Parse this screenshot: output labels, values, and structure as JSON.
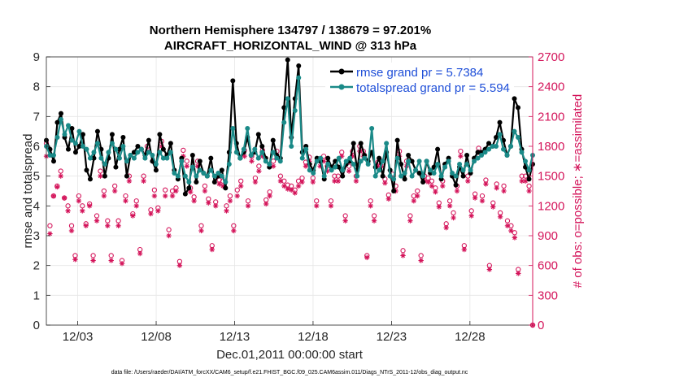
{
  "chart_data": {
    "type": "line",
    "title_line1": "Northern Hemisphere 134797 / 138679 = 97.201%",
    "title_line2": "AIRCRAFT_HORIZONTAL_WIND @ 313 hPa",
    "xlabel": "Dec.01,2011 00:00:00 start",
    "ylabel_left": "rmse and totalspread",
    "ylabel_right": "# of obs: o=possible; ∗=assimilated",
    "footer": "data file: /Users/raeder/DAI/ATM_forcXX/CAM6_setup/f.e21.FHIST_BGC.f09_025.CAM6assim.011/Diags_NTrS_2011-12/obs_diag_output.nc",
    "x_range": [
      0,
      31
    ],
    "ylim_left": [
      0,
      9
    ],
    "ylim_right": [
      0,
      2700
    ],
    "yticks_left": [
      "0",
      "1",
      "2",
      "3",
      "4",
      "5",
      "6",
      "7",
      "8",
      "9"
    ],
    "yticks_right": [
      "0",
      "300",
      "600",
      "900",
      "1200",
      "1500",
      "1800",
      "2100",
      "2400",
      "2700"
    ],
    "xticks": [
      {
        "value": 2,
        "label": "12/03"
      },
      {
        "value": 7,
        "label": "12/08"
      },
      {
        "value": 12,
        "label": "12/13"
      },
      {
        "value": 17,
        "label": "12/18"
      },
      {
        "value": 22,
        "label": "12/23"
      },
      {
        "value": 27,
        "label": "12/28"
      }
    ],
    "colors": {
      "rmse": "#000000",
      "spread": "#1a8a88",
      "obs": "#d4145a",
      "legend_text": "#1f4fd8"
    },
    "series": [
      {
        "name": "rmse grand pr = 5.7384",
        "color": "#000000",
        "values": [
          6.2,
          5.9,
          5.5,
          6.8,
          7.1,
          6.3,
          5.9,
          6.6,
          5.8,
          6.0,
          6.4,
          5.2,
          4.9,
          5.6,
          6.5,
          5.9,
          5.0,
          5.6,
          6.4,
          5.3,
          5.9,
          6.3,
          5.0,
          5.7,
          5.8,
          6.0,
          5.9,
          5.7,
          6.2,
          5.5,
          5.2,
          6.4,
          5.9,
          5.7,
          6.1,
          5.2,
          4.9,
          5.6,
          4.4,
          4.6,
          5.7,
          4.8,
          5.5,
          5.1,
          5.0,
          5.6,
          4.8,
          5.0,
          5.2,
          4.6,
          5.8,
          8.2,
          6.1,
          5.6,
          5.8,
          6.3,
          5.7,
          5.8,
          6.4,
          6.0,
          5.6,
          5.3,
          6.2,
          5.7,
          5.6,
          7.3,
          8.9,
          6.3,
          7.6,
          8.7,
          5.8,
          6.0,
          5.4,
          5.2,
          5.6,
          5.5,
          4.9,
          5.6,
          5.3,
          5.5,
          5.3,
          5.0,
          5.4,
          5.5,
          6.1,
          5.2,
          6.1,
          5.7,
          5.5,
          5.8,
          5.3,
          5.6,
          5.0,
          5.8,
          5.2,
          4.5,
          6.2,
          5.4,
          4.9,
          5.7,
          5.5,
          5.2,
          5.1,
          4.8,
          5.5,
          5.1,
          5.3,
          5.9,
          4.9,
          5.4,
          5.6,
          5.0,
          4.7,
          5.3,
          5.0,
          5.7,
          5.1,
          5.6,
          5.8,
          5.8,
          5.9,
          6.1,
          6.0,
          6.3,
          6.8,
          6.2,
          5.7,
          6.0,
          7.6,
          7.3,
          5.9,
          5.3,
          4.9,
          5.4
        ]
      },
      {
        "name": "totalspread grand pr = 5.594",
        "color": "#1a8a88",
        "values": [
          6.0,
          5.7,
          5.7,
          6.3,
          6.9,
          6.4,
          6.7,
          6.2,
          6.1,
          6.5,
          6.0,
          5.9,
          5.6,
          5.8,
          6.1,
          5.6,
          5.4,
          5.8,
          6.1,
          5.9,
          5.6,
          6.0,
          5.5,
          5.7,
          5.6,
          5.8,
          5.9,
          5.6,
          5.8,
          5.7,
          5.4,
          5.8,
          5.6,
          5.6,
          5.8,
          5.1,
          5.0,
          5.5,
          5.0,
          4.8,
          5.3,
          5.0,
          5.2,
          5.1,
          5.0,
          5.2,
          5.0,
          5.1,
          5.0,
          4.8,
          5.4,
          6.6,
          5.8,
          5.6,
          5.9,
          6.6,
          5.7,
          5.9,
          5.6,
          5.8,
          5.5,
          5.4,
          5.8,
          5.6,
          5.5,
          6.8,
          7.6,
          6.0,
          7.2,
          8.3,
          5.6,
          5.9,
          5.2,
          5.1,
          5.5,
          5.6,
          5.0,
          5.4,
          5.2,
          5.3,
          5.6,
          5.2,
          5.5,
          5.6,
          5.4,
          5.0,
          5.5,
          5.6,
          5.4,
          6.6,
          5.0,
          5.2,
          5.5,
          6.1,
          5.0,
          4.9,
          5.6,
          5.0,
          5.1,
          5.5,
          5.0,
          5.2,
          5.5,
          5.0,
          5.5,
          5.2,
          5.1,
          5.4,
          5.0,
          5.3,
          5.5,
          5.1,
          5.0,
          5.4,
          5.2,
          5.4,
          5.2,
          5.5,
          5.6,
          5.7,
          5.8,
          5.9,
          6.0,
          6.0,
          6.4,
          5.9,
          5.7,
          6.0,
          6.5,
          6.3,
          5.8,
          5.5,
          5.2,
          5.7
        ]
      }
    ],
    "possible_obs": [
      1830,
      1000,
      1300,
      1400,
      1550,
      1280,
      1200,
      1000,
      700,
      1300,
      1200,
      1020,
      1220,
      700,
      1100,
      1550,
      1350,
      1050,
      700,
      1400,
      1050,
      650,
      1300,
      1500,
      1120,
      1250,
      760,
      1500,
      1800,
      1160,
      1360,
      1180,
      1850,
      1360,
      960,
      1350,
      1380,
      640,
      1760,
      1650,
      1380,
      1290,
      1650,
      1000,
      1400,
      1270,
      800,
      1240,
      1460,
      1450,
      1200,
      1300,
      1000,
      1360,
      1450,
      1760,
      1250,
      1700,
      1480,
      1600,
      1760,
      1260,
      1340,
      1650,
      1750,
      1500,
      1450,
      1410,
      1400,
      1360,
      1450,
      1480,
      1640,
      1690,
      1480,
      1250,
      1650,
      1700,
      1600,
      1250,
      1500,
      1500,
      1740,
      1100,
      1600,
      1750,
      1500,
      1800,
      1750,
      700,
      1250,
      1100,
      1640,
      1650,
      1470,
      1310,
      1520,
      1400,
      1750,
      750,
      1650,
      1100,
      1300,
      1350,
      700,
      1500,
      1480,
      1450,
      1380,
      1230,
      1450,
      1020,
      1250,
      1130,
      1400,
      1750,
      800,
      1500,
      1150,
      1320,
      1780,
      1300,
      1460,
      600,
      1230,
      1420,
      1130,
      1400,
      1050,
      1000,
      930,
      560,
      1500,
      1500,
      1400,
      0
    ],
    "assimilated_obs": [
      1700,
      920,
      1300,
      1390,
      1500,
      1280,
      1150,
      950,
      660,
      1250,
      1150,
      1000,
      1200,
      650,
      1050,
      1500,
      1300,
      1000,
      650,
      1350,
      1000,
      620,
      1250,
      1450,
      1100,
      1200,
      720,
      1450,
      1750,
      1120,
      1300,
      1150,
      1800,
      1300,
      900,
      1300,
      1350,
      600,
      1700,
      1600,
      1340,
      1250,
      1600,
      950,
      1350,
      1230,
      760,
      1200,
      1420,
      1400,
      1150,
      1250,
      950,
      1300,
      1400,
      1700,
      1200,
      1650,
      1440,
      1550,
      1700,
      1220,
      1300,
      1600,
      1700,
      1450,
      1400,
      1370,
      1360,
      1330,
      1400,
      1440,
      1600,
      1650,
      1440,
      1200,
      1600,
      1650,
      1550,
      1200,
      1450,
      1450,
      1700,
      1050,
      1550,
      1700,
      1450,
      1750,
      1700,
      680,
      1200,
      1050,
      1600,
      1600,
      1430,
      1270,
      1480,
      1350,
      1700,
      700,
      1600,
      1050,
      1250,
      1300,
      650,
      1450,
      1440,
      1400,
      1340,
      1190,
      1400,
      980,
      1200,
      1080,
      1350,
      1700,
      760,
      1450,
      1100,
      1280,
      1740,
      1250,
      1420,
      560,
      1190,
      1380,
      1090,
      1350,
      1000,
      950,
      880,
      520,
      1450,
      1450,
      1350,
      0
    ]
  }
}
